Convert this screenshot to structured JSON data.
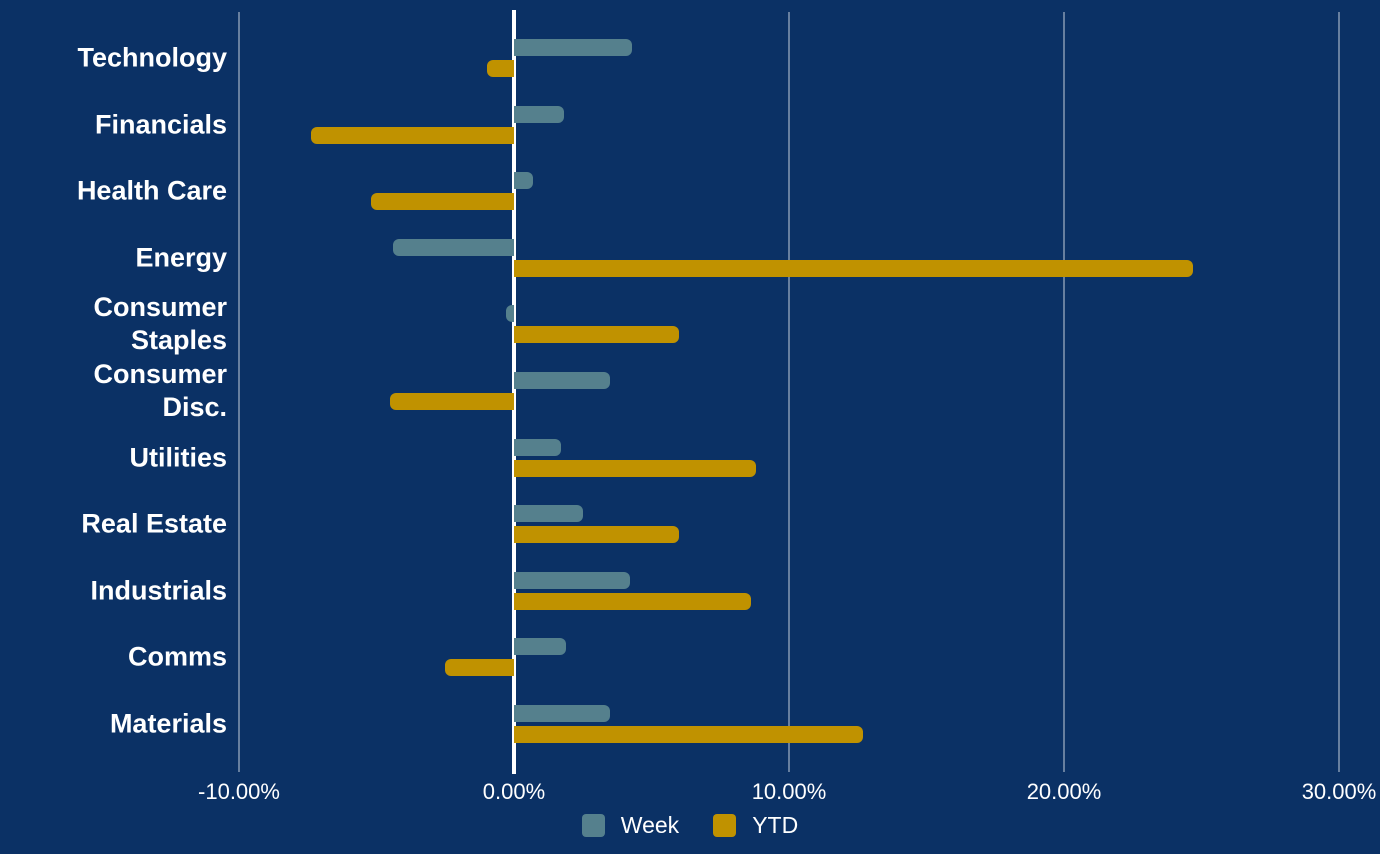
{
  "colors": {
    "background": "#0B3165",
    "week_series": "#55808D",
    "ytd_series": "#C09200",
    "gridline": "rgba(255,255,255,0.38)",
    "zero_line": "#FFFFFF",
    "text": "#FFFFFF"
  },
  "chart_data": {
    "type": "bar",
    "orientation": "horizontal",
    "title": "",
    "xlabel": "",
    "ylabel": "",
    "grid": "vertical-only",
    "legend_position": "bottom-center",
    "xlim": [
      -10,
      30
    ],
    "x_ticks": [
      {
        "value": -10,
        "label": "-10.00%"
      },
      {
        "value": 0,
        "label": "0.00%"
      },
      {
        "value": 10,
        "label": "10.00%"
      },
      {
        "value": 20,
        "label": "20.00%"
      },
      {
        "value": 30,
        "label": "30.00%"
      }
    ],
    "categories": [
      "Technology",
      "Financials",
      "Health Care",
      "Energy",
      "Consumer Staples",
      "Consumer Disc.",
      "Utilities",
      "Real Estate",
      "Industrials",
      "Comms",
      "Materials"
    ],
    "series": [
      {
        "name": "Week",
        "color": "#55808D",
        "values": [
          4.3,
          1.8,
          0.7,
          -4.4,
          -0.3,
          3.5,
          1.7,
          2.5,
          4.2,
          1.9,
          3.5
        ]
      },
      {
        "name": "YTD",
        "color": "#C09200",
        "values": [
          -1.0,
          -7.4,
          -5.2,
          24.7,
          6.0,
          -4.5,
          8.8,
          6.0,
          8.6,
          -2.5,
          12.7
        ]
      }
    ]
  },
  "legend": {
    "items": [
      {
        "label": "Week",
        "color": "#55808D"
      },
      {
        "label": "YTD",
        "color": "#C09200"
      }
    ]
  }
}
